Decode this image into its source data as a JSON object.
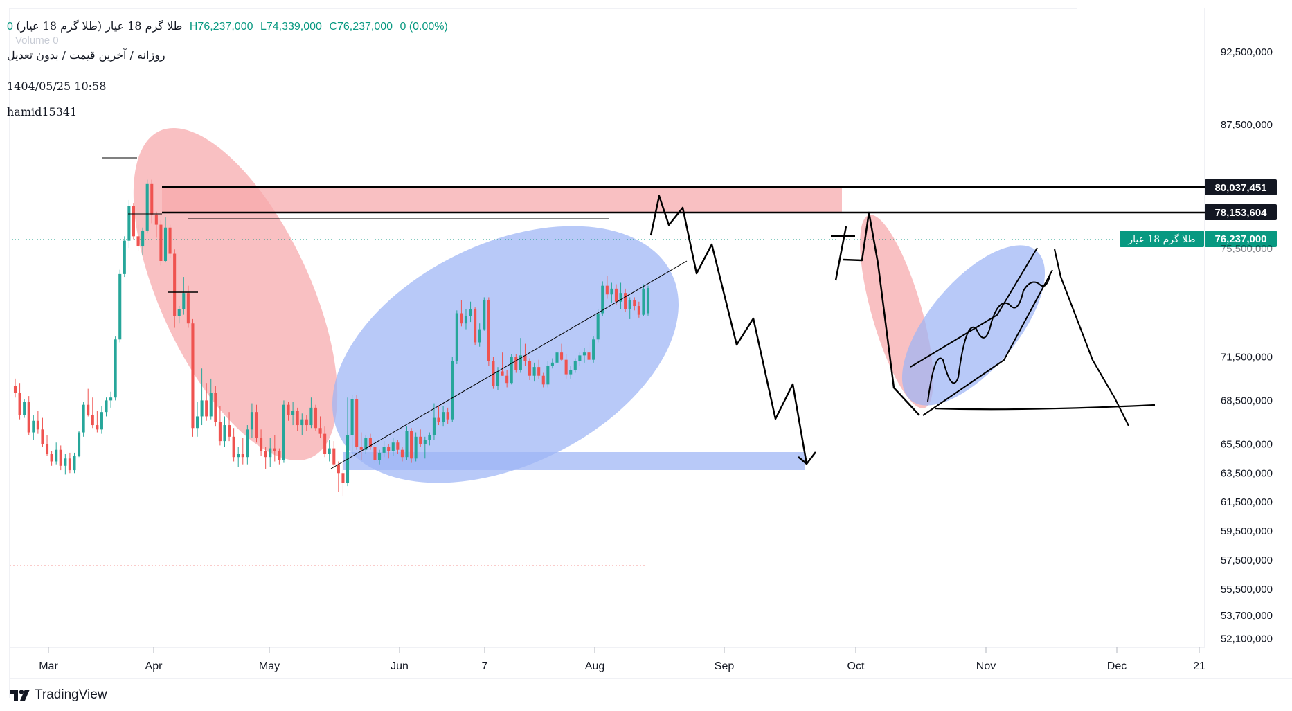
{
  "header": {
    "symbol": "طلا گرم 18 عیار (طلا گرم 18 عیار)",
    "ohlc_prefix": "0",
    "high": "H76,237,000",
    "low": "L74,339,000",
    "close": "C76,237,000",
    "change": "0 (0.00%)",
    "subtitle": "روزانه / آخرین قیمت / بدون تعدیل",
    "date": "1404/05/25 10:58",
    "author": "hamid15341",
    "volume_watermark": "Volume 0"
  },
  "colors": {
    "up": "#26a69a",
    "down": "#ef5350",
    "red_zone": "#f7a8aa",
    "blue_zone": "#9db4f5",
    "price_badge": "#089981",
    "line_badge": "#131722",
    "last_price_line": "#089981"
  },
  "branding": {
    "logo_text": "TradingView"
  },
  "chart_data": {
    "type": "candlestick",
    "title": "طلا گرم 18 عیار",
    "ylim": [
      51500000,
      95500000
    ],
    "y_ticks": [
      92500000,
      87500000,
      83500000,
      71500000,
      68500000,
      65500000,
      63500000,
      61500000,
      59500000,
      57500000,
      55500000,
      53700000,
      52100000
    ],
    "y_tick_labels": [
      "92,500,000",
      "87,500,000",
      "83,500,000",
      "71,500,000",
      "68,500,000",
      "65,500,000",
      "63,500,000",
      "61,500,000",
      "59,500,000",
      "57,500,000",
      "55,500,000",
      "53,700,000",
      "52,100,000"
    ],
    "x_ticks": [
      "Mar",
      "Apr",
      "May",
      "Jun",
      "7",
      "Aug",
      "Sep",
      "Oct",
      "Nov",
      "Dec",
      "21"
    ],
    "last_price": 76237000,
    "last_price_label": "76,237,000",
    "last_price_name": "طلا گرم 18 عیار",
    "hidden_tick_label": "75,500,000",
    "horizontal_levels": [
      {
        "value": 80037451,
        "label": "80,037,451"
      },
      {
        "value": 78153604,
        "label": "78,153,604"
      }
    ],
    "candles": [
      [
        69500000,
        70000000,
        68700000,
        69000000
      ],
      [
        69000000,
        69700000,
        67200000,
        67500000
      ],
      [
        67500000,
        68600000,
        67300000,
        68400000
      ],
      [
        68400000,
        68800000,
        66100000,
        66300000
      ],
      [
        66300000,
        67500000,
        65800000,
        67100000
      ],
      [
        67100000,
        67800000,
        66200000,
        66500000
      ],
      [
        66500000,
        67300000,
        65300000,
        65500000
      ],
      [
        65500000,
        66100000,
        64700000,
        64800000
      ],
      [
        64800000,
        65000000,
        64000000,
        64300000
      ],
      [
        64300000,
        65600000,
        64100000,
        65100000
      ],
      [
        65100000,
        65400000,
        63700000,
        64000000
      ],
      [
        64000000,
        64800000,
        63400000,
        64500000
      ],
      [
        64500000,
        64900000,
        63500000,
        63700000
      ],
      [
        63700000,
        64900000,
        63500000,
        64700000
      ],
      [
        64700000,
        66400000,
        64600000,
        66300000
      ],
      [
        66300000,
        68400000,
        66000000,
        68200000
      ],
      [
        68200000,
        69300000,
        67400000,
        67500000
      ],
      [
        67500000,
        68700000,
        66600000,
        66800000
      ],
      [
        66800000,
        67800000,
        66300000,
        66500000
      ],
      [
        66500000,
        68100000,
        66200000,
        67700000
      ],
      [
        67700000,
        68700000,
        67400000,
        68500000
      ],
      [
        68500000,
        69100000,
        68000000,
        68700000
      ],
      [
        68700000,
        72900000,
        68500000,
        72700000
      ],
      [
        72700000,
        77500000,
        72500000,
        77200000
      ],
      [
        77200000,
        79800000,
        77000000,
        79500000
      ],
      [
        79500000,
        82300000,
        79000000,
        81900000
      ],
      [
        81900000,
        82100000,
        79600000,
        79800000
      ],
      [
        79800000,
        80600000,
        78800000,
        79100000
      ],
      [
        79100000,
        80400000,
        78500000,
        80200000
      ],
      [
        80200000,
        83700000,
        80000000,
        83400000
      ],
      [
        83400000,
        83700000,
        80700000,
        81300000
      ],
      [
        81300000,
        81500000,
        79700000,
        80600000
      ],
      [
        80600000,
        80900000,
        77800000,
        78100000
      ],
      [
        78100000,
        81100000,
        78000000,
        80400000
      ],
      [
        80400000,
        80600000,
        78300000,
        78600000
      ],
      [
        78600000,
        78900000,
        73500000,
        74300000
      ],
      [
        74300000,
        75000000,
        73800000,
        74800000
      ],
      [
        74800000,
        77000000,
        74400000,
        75900000
      ],
      [
        75900000,
        76400000,
        73500000,
        73800000
      ],
      [
        73800000,
        74100000,
        66000000,
        66600000
      ],
      [
        66600000,
        68400000,
        66000000,
        67400000
      ],
      [
        67400000,
        70700000,
        66800000,
        68500000
      ],
      [
        68500000,
        69700000,
        67100000,
        67400000
      ],
      [
        67400000,
        70000000,
        67200000,
        69000000
      ],
      [
        69000000,
        69500000,
        66700000,
        67000000
      ],
      [
        67000000,
        68100000,
        65400000,
        65700000
      ],
      [
        65700000,
        67400000,
        65300000,
        66800000
      ],
      [
        66800000,
        67700000,
        65700000,
        66000000
      ],
      [
        66000000,
        66600000,
        64300000,
        64600000
      ],
      [
        64600000,
        65300000,
        63900000,
        64800000
      ],
      [
        64800000,
        65900000,
        64100000,
        64600000
      ],
      [
        64600000,
        66800000,
        64100000,
        66500000
      ],
      [
        66500000,
        68300000,
        65900000,
        67700000
      ],
      [
        67700000,
        68200000,
        65600000,
        65900000
      ],
      [
        65900000,
        66500000,
        64700000,
        65000000
      ],
      [
        65000000,
        65300000,
        63800000,
        64600000
      ],
      [
        64600000,
        65900000,
        63900000,
        65200000
      ],
      [
        65200000,
        66100000,
        64300000,
        65000000
      ],
      [
        65000000,
        65200000,
        64100000,
        64400000
      ],
      [
        64400000,
        68500000,
        64200000,
        68200000
      ],
      [
        68200000,
        68400000,
        67100000,
        67500000
      ],
      [
        67500000,
        68400000,
        66800000,
        67800000
      ],
      [
        67800000,
        68000000,
        66400000,
        66800000
      ],
      [
        66800000,
        67600000,
        66100000,
        67200000
      ],
      [
        67200000,
        67500000,
        66400000,
        66800000
      ],
      [
        66800000,
        68700000,
        66600000,
        68000000
      ],
      [
        68000000,
        68200000,
        66400000,
        66600000
      ],
      [
        66600000,
        67400000,
        65900000,
        66200000
      ],
      [
        66200000,
        66700000,
        64600000,
        64800000
      ],
      [
        64800000,
        65800000,
        64300000,
        65200000
      ],
      [
        65200000,
        65700000,
        63900000,
        64100000
      ],
      [
        64100000,
        64300000,
        62200000,
        63500000
      ],
      [
        63500000,
        64200000,
        61900000,
        62800000
      ],
      [
        62800000,
        68700000,
        62600000,
        66100000
      ],
      [
        66100000,
        68900000,
        64800000,
        68600000
      ],
      [
        68600000,
        68900000,
        65100000,
        65300000
      ],
      [
        65300000,
        66300000,
        64400000,
        65100000
      ],
      [
        65100000,
        66100000,
        64800000,
        65900000
      ],
      [
        65900000,
        66200000,
        65100000,
        65300000
      ],
      [
        65300000,
        65500000,
        64200000,
        64400000
      ],
      [
        64400000,
        65100000,
        64100000,
        64900000
      ],
      [
        64900000,
        65700000,
        64600000,
        65300000
      ],
      [
        65300000,
        65500000,
        64500000,
        65000000
      ],
      [
        65000000,
        65900000,
        64700000,
        65600000
      ],
      [
        65600000,
        65800000,
        64800000,
        65100000
      ],
      [
        65100000,
        65300000,
        64300000,
        64600000
      ],
      [
        64600000,
        66700000,
        64400000,
        66400000
      ],
      [
        66400000,
        66600000,
        64200000,
        64500000
      ],
      [
        64500000,
        66300000,
        64300000,
        66000000
      ],
      [
        66000000,
        66500000,
        65300000,
        65500000
      ],
      [
        65500000,
        66000000,
        64500000,
        65800000
      ],
      [
        65800000,
        66300000,
        65400000,
        66100000
      ],
      [
        66100000,
        68300000,
        65800000,
        67300000
      ],
      [
        67300000,
        68100000,
        66800000,
        67000000
      ],
      [
        67000000,
        68100000,
        66700000,
        67700000
      ],
      [
        67700000,
        68000000,
        66900000,
        67200000
      ],
      [
        67200000,
        71500000,
        67000000,
        71200000
      ],
      [
        71200000,
        74700000,
        71000000,
        74500000
      ],
      [
        74500000,
        75400000,
        73600000,
        73800000
      ],
      [
        73800000,
        74800000,
        73400000,
        74300000
      ],
      [
        74300000,
        75300000,
        73900000,
        74800000
      ],
      [
        74800000,
        74900000,
        72300000,
        72500000
      ],
      [
        72500000,
        73800000,
        72200000,
        73400000
      ],
      [
        73400000,
        75600000,
        73300000,
        75400000
      ],
      [
        75400000,
        75600000,
        70900000,
        71200000
      ],
      [
        71200000,
        71500000,
        69300000,
        69500000
      ],
      [
        69500000,
        70800000,
        69200000,
        70500000
      ],
      [
        70500000,
        71800000,
        70200000,
        70200000
      ],
      [
        70200000,
        70600000,
        69400000,
        69700000
      ],
      [
        69700000,
        71700000,
        69600000,
        71500000
      ],
      [
        71500000,
        71700000,
        70400000,
        70600000
      ],
      [
        70600000,
        72800000,
        70400000,
        71600000
      ],
      [
        71600000,
        72400000,
        70900000,
        71200000
      ],
      [
        71200000,
        71400000,
        69900000,
        70200000
      ],
      [
        70200000,
        71100000,
        69800000,
        70800000
      ],
      [
        70800000,
        71300000,
        70000000,
        70200000
      ],
      [
        70200000,
        70400000,
        69400000,
        69600000
      ],
      [
        69600000,
        71200000,
        69400000,
        70900000
      ],
      [
        70900000,
        71400000,
        70700000,
        71100000
      ],
      [
        71100000,
        72200000,
        70900000,
        71800000
      ],
      [
        71800000,
        72400000,
        71200000,
        71300000
      ],
      [
        71300000,
        71700000,
        70000000,
        70300000
      ],
      [
        70300000,
        70900000,
        70000000,
        70600000
      ],
      [
        70600000,
        71400000,
        70400000,
        71200000
      ],
      [
        71200000,
        71800000,
        70900000,
        71600000
      ],
      [
        71600000,
        72100000,
        71100000,
        71800000
      ],
      [
        71800000,
        72500000,
        71300000,
        71300000
      ],
      [
        71300000,
        72900000,
        71100000,
        72700000
      ],
      [
        72700000,
        74800000,
        72500000,
        74500000
      ],
      [
        74500000,
        76700000,
        74300000,
        76400000
      ],
      [
        76400000,
        77100000,
        75500000,
        75800000
      ],
      [
        75800000,
        76600000,
        75200000,
        76200000
      ],
      [
        76200000,
        76500000,
        75100000,
        75300000
      ],
      [
        75300000,
        76600000,
        74800000,
        75900000
      ],
      [
        75900000,
        76200000,
        74600000,
        74800000
      ],
      [
        74800000,
        75600000,
        74100000,
        75400000
      ],
      [
        75400000,
        75600000,
        74700000,
        75000000
      ],
      [
        75000000,
        75300000,
        74200000,
        74400000
      ],
      [
        74400000,
        76500000,
        74300000,
        76200000
      ],
      [
        74500000,
        76400000,
        74339000,
        76237000
      ]
    ]
  }
}
